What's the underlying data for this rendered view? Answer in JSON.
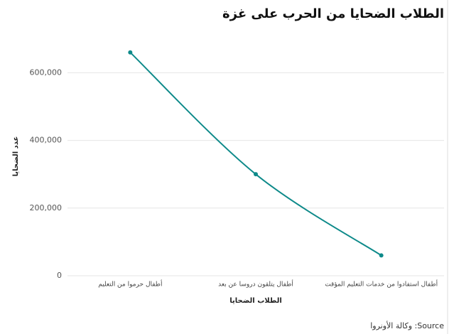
{
  "chart_data": {
    "type": "line",
    "title": "الطلاب الضحايا من الحرب على غزة",
    "x_label": "الطلاب الضحايا",
    "y_label": "عدد الضحايا",
    "source": "Source: وكالة الأونروا",
    "categories": [
      "أطفال حرموا من التعليم",
      "أطفال يتلقون دروسا عن بعد",
      "أطفال استفادوا من خدمات التعليم المؤقت"
    ],
    "series": [
      {
        "name": "عدد الضحايا",
        "color": "#0e8a8a",
        "values": [
          660000,
          300000,
          60000
        ]
      }
    ],
    "ylim": [
      0,
      710000
    ],
    "yticks": [
      0,
      {
        "value": 200000,
        "label": "200,000"
      },
      {
        "value": 400000,
        "label": "400,000"
      },
      {
        "value": 600000,
        "label": "600,000"
      }
    ],
    "grid": true
  }
}
